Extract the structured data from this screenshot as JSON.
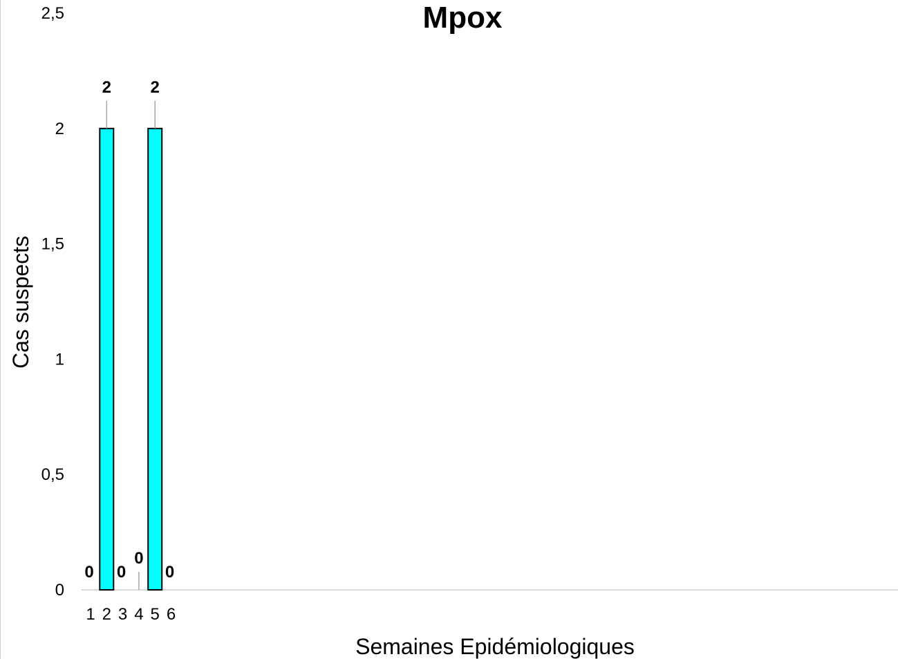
{
  "chart_data": {
    "type": "bar",
    "title": "Mpox",
    "xlabel": "Semaines Epidémiologiques",
    "ylabel": "Cas suspects",
    "categories": [
      "1",
      "2",
      "3",
      "4",
      "5",
      "6"
    ],
    "values": [
      0,
      2,
      0,
      0,
      2,
      0
    ],
    "data_labels": [
      "0",
      "2",
      "0",
      "0",
      "2",
      "0"
    ],
    "yticks": [
      "0",
      "0,5",
      "1",
      "1,5",
      "2",
      "2,5"
    ],
    "ylim": [
      0,
      2.5
    ],
    "grid": false,
    "legend": "none",
    "bar_color": "#00FFFF",
    "bar_edge_color": "#000000"
  }
}
